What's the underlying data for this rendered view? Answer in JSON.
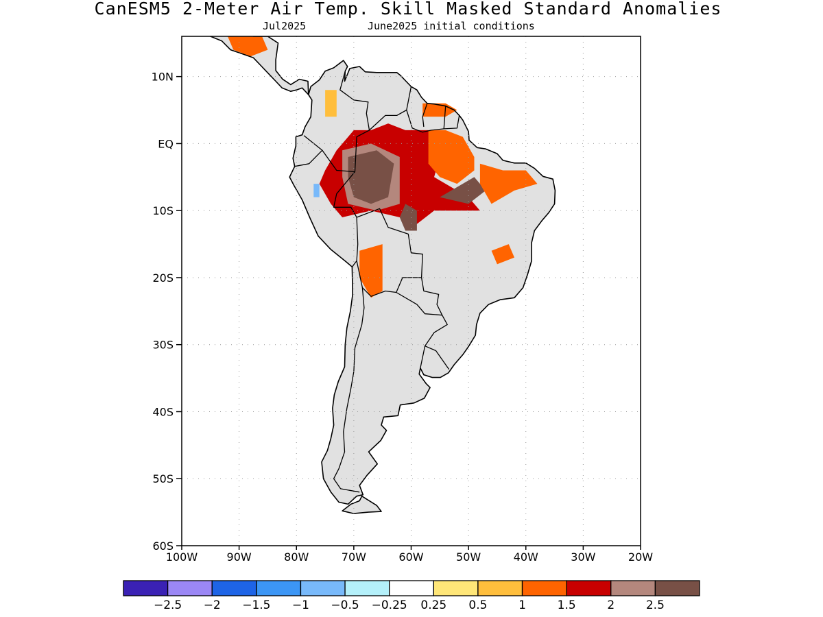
{
  "title": "CanESM5 2-Meter Air Temp. Skill Masked Standard Anomalies",
  "subtitle_left": "Jul2025",
  "subtitle_right": "June2025 initial conditions",
  "map": {
    "lon_range": [
      -100,
      -20
    ],
    "lat_range": [
      -60,
      16
    ],
    "lat_ticks": [
      {
        "value": 10,
        "label": "10N"
      },
      {
        "value": 0,
        "label": "EQ"
      },
      {
        "value": -10,
        "label": "10S"
      },
      {
        "value": -20,
        "label": "20S"
      },
      {
        "value": -30,
        "label": "30S"
      },
      {
        "value": -40,
        "label": "40S"
      },
      {
        "value": -50,
        "label": "50S"
      },
      {
        "value": -60,
        "label": "60S"
      }
    ],
    "lon_ticks": [
      {
        "value": -100,
        "label": "100W"
      },
      {
        "value": -90,
        "label": "90W"
      },
      {
        "value": -80,
        "label": "80W"
      },
      {
        "value": -70,
        "label": "70W"
      },
      {
        "value": -60,
        "label": "60W"
      },
      {
        "value": -50,
        "label": "50W"
      },
      {
        "value": -40,
        "label": "40W"
      },
      {
        "value": -30,
        "label": "30W"
      },
      {
        "value": -20,
        "label": "20W"
      }
    ],
    "grid": true,
    "land_masked_color": "#e1e1e1",
    "coast_color": "#000000"
  },
  "colorbar": {
    "colors": [
      "#3a21b4",
      "#9b87f5",
      "#1e64e6",
      "#3c96f5",
      "#78b9fa",
      "#b4f0fa",
      "#ffffff",
      "#ffe678",
      "#ffbe3c",
      "#ff6400",
      "#c80000",
      "#b4877d",
      "#785046"
    ],
    "labels": [
      "-2.5",
      "-2",
      "-1.5",
      "-1",
      "-0.5",
      "-0.25",
      "0.25",
      "0.5",
      "1",
      "1.5",
      "2",
      "2.5"
    ]
  },
  "chart_data": {
    "type": "heatmap",
    "title": "CanESM5 2-Meter Air Temp. Skill Masked Standard Anomalies",
    "subtitle": "Jul2025   June2025 initial conditions",
    "variable": "2-Meter Air Temp. standard anomaly",
    "xlim": [
      -100,
      -20
    ],
    "ylim": [
      -60,
      16
    ],
    "levels": [
      -2.5,
      -2,
      -1.5,
      -1,
      -0.5,
      -0.25,
      0.25,
      0.5,
      1,
      1.5,
      2,
      2.5
    ],
    "regions": [
      {
        "name": "central-amazon-core",
        "value_range": ">2.5",
        "polygon": [
          [
            -71,
            -2
          ],
          [
            -66,
            -1
          ],
          [
            -63,
            -3
          ],
          [
            -64,
            -8
          ],
          [
            -67,
            -9
          ],
          [
            -70,
            -8
          ],
          [
            -71,
            -5
          ]
        ]
      },
      {
        "name": "central-amazon-2to25",
        "value_range": "2 to 2.5",
        "polygon": [
          [
            -72,
            -1
          ],
          [
            -67,
            0
          ],
          [
            -62,
            -2
          ],
          [
            -62,
            -9
          ],
          [
            -66,
            -10
          ],
          [
            -71,
            -9
          ],
          [
            -72,
            -5
          ]
        ]
      },
      {
        "name": "amazon-red",
        "value_range": "1.5 to 2",
        "polygon": [
          [
            -75,
            -4
          ],
          [
            -73,
            -1
          ],
          [
            -70,
            2
          ],
          [
            -67,
            2
          ],
          [
            -64,
            3
          ],
          [
            -61,
            2
          ],
          [
            -57,
            2
          ],
          [
            -55,
            -2
          ],
          [
            -56,
            -5
          ],
          [
            -52,
            -7
          ],
          [
            -50,
            -8
          ],
          [
            -48,
            -10
          ],
          [
            -56,
            -10
          ],
          [
            -59,
            -12
          ],
          [
            -60,
            -13
          ],
          [
            -62,
            -11
          ],
          [
            -67,
            -10
          ],
          [
            -72,
            -11
          ],
          [
            -74,
            -9
          ],
          [
            -76,
            -6
          ]
        ]
      },
      {
        "name": "east-amazon-orange",
        "value_range": "1 to 1.5",
        "polygon": [
          [
            -57,
            2
          ],
          [
            -54,
            2
          ],
          [
            -51,
            1
          ],
          [
            -49,
            -2
          ],
          [
            -49,
            -4
          ],
          [
            -52,
            -6
          ],
          [
            -55,
            -5
          ],
          [
            -57,
            -3
          ]
        ]
      },
      {
        "name": "para-brown",
        "value_range": ">2.5",
        "polygon": [
          [
            -53,
            -7
          ],
          [
            -49,
            -5
          ],
          [
            -47,
            -7
          ],
          [
            -50,
            -9
          ],
          [
            -55,
            -8
          ]
        ]
      },
      {
        "name": "mato-grosso-brown",
        "value_range": ">2.5",
        "polygon": [
          [
            -61,
            -9
          ],
          [
            -59,
            -10
          ],
          [
            -59,
            -13
          ],
          [
            -61,
            -13
          ],
          [
            -62,
            -11
          ]
        ]
      },
      {
        "name": "northeast-brazil-orange",
        "value_range": "1 to 1.5",
        "polygon": [
          [
            -48,
            -3
          ],
          [
            -44,
            -4
          ],
          [
            -40,
            -4
          ],
          [
            -38,
            -6
          ],
          [
            -42,
            -7
          ],
          [
            -46,
            -9
          ],
          [
            -48,
            -6
          ]
        ]
      },
      {
        "name": "bolivia-orange",
        "value_range": "1 to 1.5",
        "polygon": [
          [
            -69,
            -16
          ],
          [
            -65,
            -15
          ],
          [
            -65,
            -22
          ],
          [
            -67,
            -23
          ],
          [
            -69,
            -20
          ]
        ]
      },
      {
        "name": "bahia-orange",
        "value_range": "1 to 1.5",
        "polygon": [
          [
            -46,
            -16
          ],
          [
            -43,
            -15
          ],
          [
            -42,
            -17
          ],
          [
            -45,
            -18
          ]
        ]
      },
      {
        "name": "colombia-yellow",
        "value_range": "0.5 to 1",
        "polygon": [
          [
            -75,
            8
          ],
          [
            -73,
            8
          ],
          [
            -73,
            4
          ],
          [
            -75,
            4
          ]
        ]
      },
      {
        "name": "guianas-orange",
        "value_range": "1 to 1.5",
        "polygon": [
          [
            -58,
            6
          ],
          [
            -54,
            6
          ],
          [
            -52,
            5
          ],
          [
            -54,
            4
          ],
          [
            -58,
            4
          ]
        ]
      },
      {
        "name": "central-america-orange",
        "value_range": "1 to 1.5",
        "polygon": [
          [
            -92,
            16
          ],
          [
            -86,
            16
          ],
          [
            -85,
            14
          ],
          [
            -88,
            13
          ],
          [
            -91,
            14
          ]
        ]
      },
      {
        "name": "peru-blue",
        "value_range": "-1 to -0.5",
        "polygon": [
          [
            -77,
            -6
          ],
          [
            -76,
            -6
          ],
          [
            -76,
            -8
          ],
          [
            -77,
            -8
          ]
        ]
      }
    ]
  }
}
